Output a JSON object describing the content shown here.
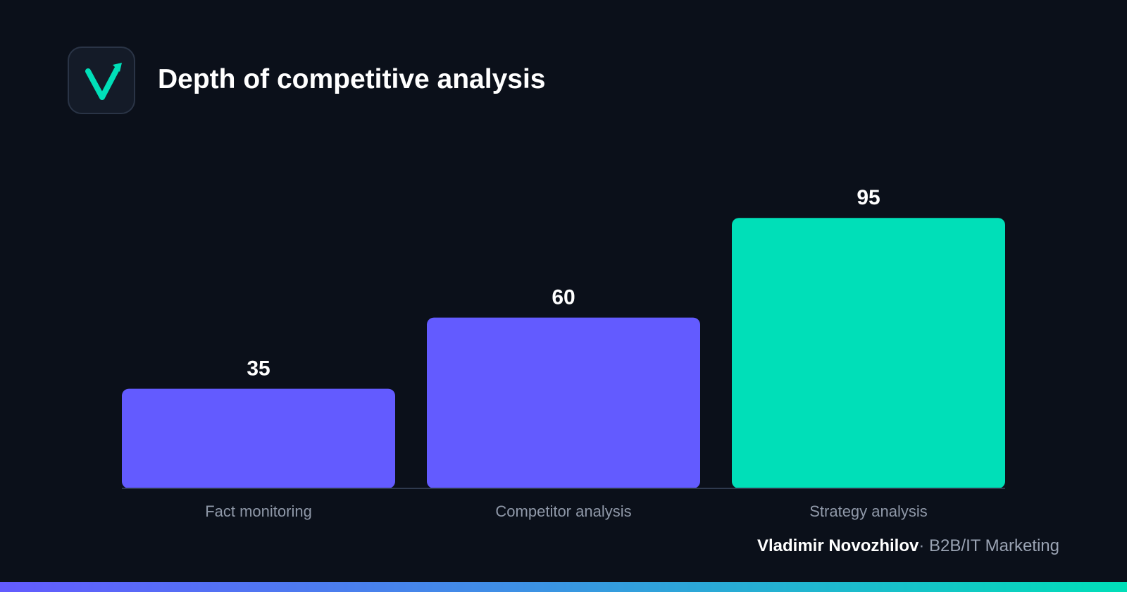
{
  "header": {
    "title": "Depth of competitive analysis",
    "logo_icon": "check-arrow-icon"
  },
  "colors": {
    "background": "#0b101a",
    "primary_bar": "#635bff",
    "highlight_bar": "#00dfb8",
    "logo_accent": "#00dfb8"
  },
  "chart_data": {
    "type": "bar",
    "title": "Depth of competitive analysis",
    "categories": [
      "Fact monitoring",
      "Competitor analysis",
      "Strategy analysis"
    ],
    "values": [
      35,
      60,
      95
    ],
    "value_labels": [
      "35",
      "60",
      "95"
    ],
    "bar_colors": [
      "#635bff",
      "#635bff",
      "#00dfb8"
    ],
    "xlabel": "",
    "ylabel": "",
    "ylim": [
      0,
      100
    ],
    "grid": false,
    "legend": "none"
  },
  "footer": {
    "author": "Vladimir Novozhilov",
    "separator": "·",
    "role": "B2B/IT Marketing"
  }
}
